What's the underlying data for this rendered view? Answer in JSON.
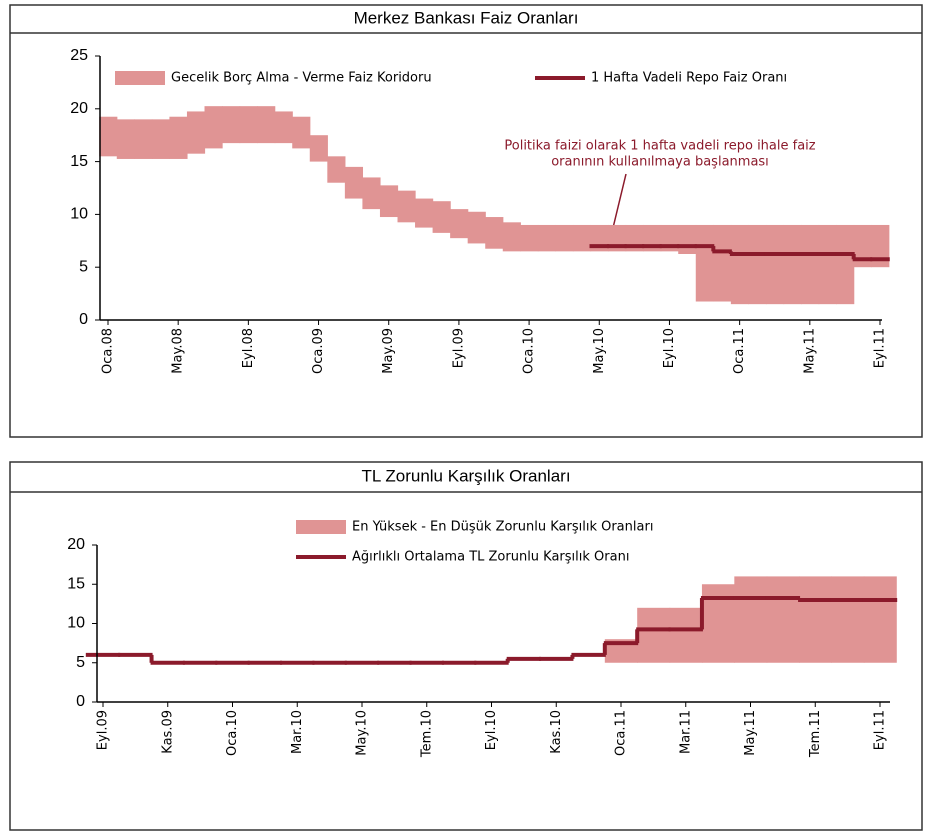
{
  "chart_data": [
    {
      "type": "step",
      "title": "Merkez Bankası Faiz Oranları",
      "categories": [
        "Oca.08",
        null,
        null,
        null,
        "May.08",
        null,
        null,
        null,
        "Eyl.08",
        null,
        null,
        null,
        "Oca.09",
        null,
        null,
        null,
        "May.09",
        null,
        null,
        null,
        "Eyl.09",
        null,
        null,
        null,
        "Oca.10",
        null,
        null,
        null,
        "May.10",
        null,
        null,
        null,
        "Eyl.10",
        null,
        null,
        null,
        "Oca.11",
        null,
        null,
        null,
        "May.11",
        null,
        null,
        null,
        "Eyl.11"
      ],
      "series": [
        {
          "name": "Gecelik Borç Alma - Verme Faiz Koridoru",
          "color": "#e09494",
          "low": [
            15.5,
            15.25,
            15.25,
            15.25,
            15.25,
            15.75,
            16.25,
            16.75,
            16.75,
            16.75,
            16.75,
            16.25,
            15,
            13,
            11.5,
            10.5,
            9.75,
            9.25,
            8.75,
            8.25,
            7.75,
            7.25,
            6.75,
            6.5,
            6.5,
            6.5,
            6.5,
            6.5,
            6.5,
            6.5,
            6.5,
            6.5,
            6.5,
            6.25,
            1.75,
            1.75,
            1.5,
            1.5,
            1.5,
            1.5,
            1.5,
            1.5,
            1.5,
            5,
            5
          ],
          "high": [
            19.25,
            19,
            19,
            19,
            19.25,
            19.75,
            20.25,
            20.25,
            20.25,
            20.25,
            19.75,
            19.25,
            17.5,
            15.5,
            14.5,
            13.5,
            12.75,
            12.25,
            11.5,
            11.25,
            10.5,
            10.25,
            9.75,
            9.25,
            9,
            9,
            9,
            9,
            9,
            9,
            9,
            9,
            9,
            9,
            9,
            9,
            9,
            9,
            9,
            9,
            9,
            9,
            9,
            9,
            9
          ]
        },
        {
          "name": "1 Hafta Vadeli Repo Faiz Oranı",
          "color": "#8b1a2b",
          "values": [
            null,
            null,
            null,
            null,
            null,
            null,
            null,
            null,
            null,
            null,
            null,
            null,
            null,
            null,
            null,
            null,
            null,
            null,
            null,
            null,
            null,
            null,
            null,
            null,
            null,
            null,
            null,
            null,
            7,
            7,
            7,
            7,
            7,
            7,
            7,
            6.5,
            6.25,
            6.25,
            6.25,
            6.25,
            6.25,
            6.25,
            6.25,
            5.75,
            5.75
          ]
        }
      ],
      "annotation": [
        "Politika faizi olarak 1 hafta vadeli repo ihale faiz",
        "oranının kullanılmaya başlanması"
      ],
      "ylim": [
        0,
        25
      ],
      "yticks": [
        0,
        5,
        10,
        15,
        20,
        25
      ],
      "grid": false
    },
    {
      "type": "step",
      "title": "TL Zorunlu Karşılık Oranları",
      "categories": [
        "Eyl.09",
        null,
        "Kas.09",
        null,
        "Oca.10",
        null,
        "Mar.10",
        null,
        "May.10",
        null,
        "Tem.10",
        null,
        "Eyl.10",
        null,
        "Kas.10",
        null,
        "Oca.11",
        null,
        "Mar.11",
        null,
        "May.11",
        null,
        "Tem.11",
        null,
        "Eyl.11"
      ],
      "series": [
        {
          "name": "En Yüksek - En Düşük Zorunlu Karşılık Oranları",
          "color": "#e09494",
          "low": [
            null,
            null,
            null,
            null,
            null,
            null,
            null,
            null,
            null,
            null,
            null,
            null,
            null,
            null,
            null,
            null,
            5,
            5,
            5,
            5,
            5,
            5,
            5,
            5,
            5
          ],
          "high": [
            null,
            null,
            null,
            null,
            null,
            null,
            null,
            null,
            null,
            null,
            null,
            null,
            null,
            null,
            null,
            null,
            8,
            12,
            12,
            15,
            16,
            16,
            16,
            16,
            16
          ]
        },
        {
          "name": "Ağırlıklı Ortalama TL Zorunlu Karşılık Oranı",
          "color": "#8b1a2b",
          "values": [
            6,
            6,
            5,
            5,
            5,
            5,
            5,
            5,
            5,
            5,
            5,
            5,
            5,
            5.5,
            5.5,
            6,
            7.5,
            9.25,
            9.25,
            13.25,
            13.25,
            13.25,
            13,
            13,
            13
          ]
        }
      ],
      "ylim": [
        0,
        20
      ],
      "yticks": [
        0,
        5,
        10,
        15,
        20
      ],
      "grid": false
    }
  ]
}
